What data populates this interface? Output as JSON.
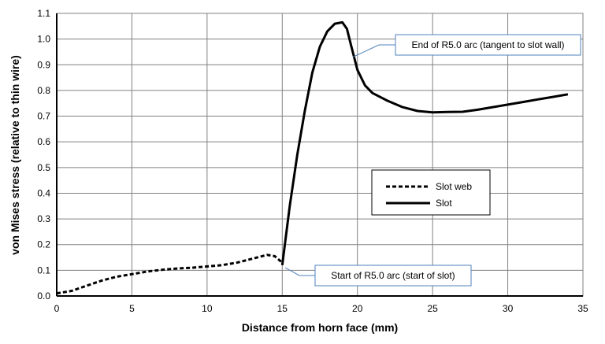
{
  "chart_data": {
    "type": "line",
    "title": "",
    "xlabel": "Distance from horn face (mm)",
    "ylabel": "von Mises stress (relative to thin wire)",
    "xlim": [
      0,
      35
    ],
    "ylim": [
      0,
      1.1
    ],
    "xticks": [
      0,
      5,
      10,
      15,
      20,
      25,
      30,
      35
    ],
    "yticks": [
      0.0,
      0.1,
      0.2,
      0.3,
      0.4,
      0.5,
      0.6,
      0.7,
      0.8,
      0.9,
      1.0,
      1.1
    ],
    "ytick_labels": [
      "0.0",
      "0.1",
      "0.2",
      "0.3",
      "0.4",
      "0.5",
      "0.6",
      "0.7",
      "0.8",
      "0.9",
      "1.0",
      "1.1"
    ],
    "grid": true,
    "legend_placement": "center-right",
    "series": [
      {
        "name": "Slot web",
        "style": "dashed",
        "color": "#000000",
        "x": [
          0,
          1,
          2,
          3,
          4,
          5,
          6,
          7,
          8,
          9,
          10,
          11,
          12,
          13,
          14,
          14.5,
          15
        ],
        "y": [
          0.01,
          0.02,
          0.04,
          0.06,
          0.075,
          0.085,
          0.095,
          0.102,
          0.107,
          0.11,
          0.115,
          0.12,
          0.13,
          0.145,
          0.16,
          0.155,
          0.13
        ]
      },
      {
        "name": "Slot",
        "style": "solid",
        "color": "#000000",
        "x": [
          15,
          15.5,
          16,
          16.5,
          17,
          17.5,
          18,
          18.5,
          19,
          19.3,
          19.6,
          20,
          20.5,
          21,
          22,
          23,
          24,
          25,
          26,
          27,
          28,
          29,
          30,
          31,
          32,
          33,
          34
        ],
        "y": [
          0.12,
          0.35,
          0.55,
          0.72,
          0.87,
          0.97,
          1.03,
          1.06,
          1.065,
          1.04,
          0.97,
          0.88,
          0.82,
          0.79,
          0.76,
          0.735,
          0.72,
          0.715,
          0.716,
          0.717,
          0.725,
          0.735,
          0.745,
          0.755,
          0.765,
          0.775,
          0.785
        ]
      }
    ],
    "annotations": [
      {
        "text": "End of R5.0 arc (tangent to slot wall)",
        "x": 19.7,
        "y": 0.93
      },
      {
        "text": "Start of R5.0 arc (start of slot)",
        "x": 15.2,
        "y": 0.11
      }
    ],
    "annotation_color": "#4f81bd"
  }
}
